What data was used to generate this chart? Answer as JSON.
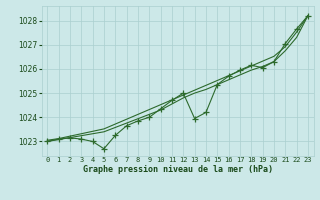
{
  "title": "Graphe pression niveau de la mer (hPa)",
  "x_values": [
    0,
    1,
    2,
    3,
    4,
    5,
    6,
    7,
    8,
    9,
    10,
    11,
    12,
    13,
    14,
    15,
    16,
    17,
    18,
    19,
    20,
    21,
    22,
    23
  ],
  "x_labels": [
    "0",
    "1",
    "2",
    "3",
    "4",
    "5",
    "6",
    "7",
    "8",
    "9",
    "10",
    "11",
    "12",
    "13",
    "14",
    "15",
    "16",
    "17",
    "18",
    "19",
    "20",
    "21",
    "22",
    "23"
  ],
  "ylim": [
    1022.4,
    1028.6
  ],
  "yticks": [
    1023,
    1024,
    1025,
    1026,
    1027,
    1028
  ],
  "line_zigzag": [
    1023.0,
    1023.1,
    1023.15,
    1023.1,
    1023.0,
    1022.7,
    1023.25,
    1023.65,
    1023.85,
    1024.0,
    1024.35,
    1024.7,
    1025.0,
    1023.95,
    1024.2,
    1025.35,
    1025.7,
    1025.95,
    1026.15,
    1026.05,
    1026.3,
    1027.05,
    1027.65,
    1028.2
  ],
  "line_upper": [
    1023.05,
    1023.12,
    1023.22,
    1023.32,
    1023.42,
    1023.52,
    1023.72,
    1023.92,
    1024.12,
    1024.32,
    1024.52,
    1024.72,
    1024.92,
    1025.12,
    1025.32,
    1025.52,
    1025.72,
    1025.92,
    1026.12,
    1026.32,
    1026.52,
    1026.92,
    1027.52,
    1028.2
  ],
  "line_lower": [
    1023.0,
    1023.08,
    1023.16,
    1023.24,
    1023.32,
    1023.4,
    1023.58,
    1023.76,
    1023.94,
    1024.12,
    1024.3,
    1024.55,
    1024.8,
    1025.0,
    1025.15,
    1025.35,
    1025.55,
    1025.75,
    1025.95,
    1026.1,
    1026.3,
    1026.75,
    1027.3,
    1028.2
  ],
  "line_color": "#2d6a2d",
  "bg_color": "#cce8e8",
  "grid_color": "#aacfcf",
  "title_color": "#1a4a1a",
  "marker": "+",
  "marker_size": 4,
  "linewidth": 0.8
}
